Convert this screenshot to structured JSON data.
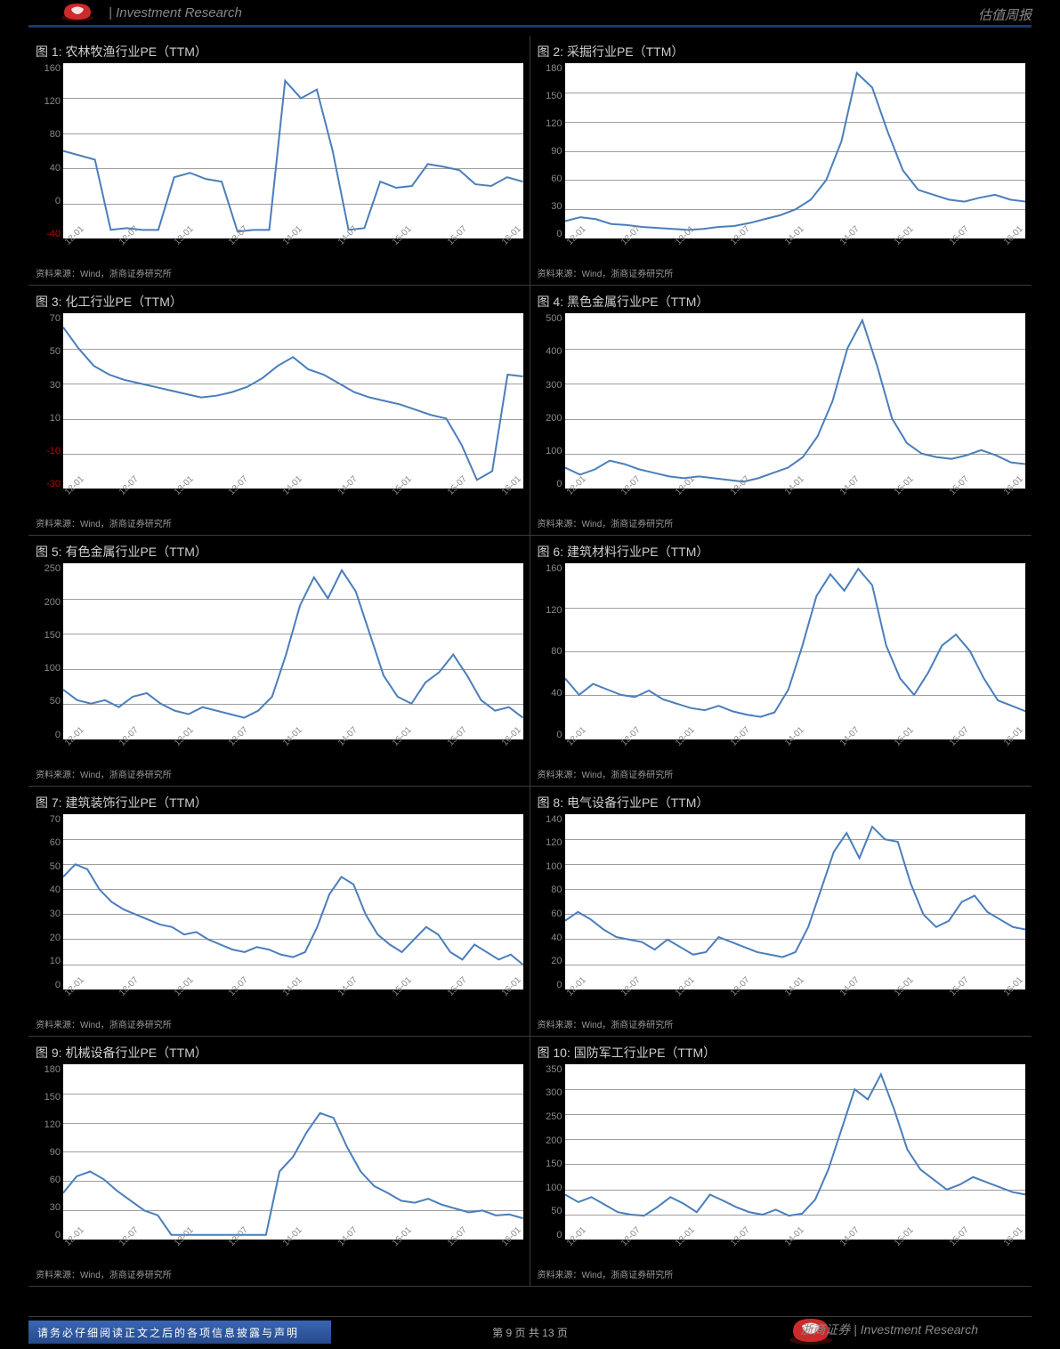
{
  "header": {
    "left": "| Investment Research",
    "right": "估值周报"
  },
  "footer": {
    "bar": "请务必仔细阅读正文之后的各项信息披露与声明",
    "page": "第 9 页 共 13 页",
    "brand": "浙商证券 | Investment Research",
    "logo_red": "#cc2b2b",
    "logo_shadow": "#5a0e0e"
  },
  "brand": {
    "red": "#cc2b2b",
    "shadow": "#5a0e0e",
    "header_rule": "#1f3864"
  },
  "xticks": [
    "12-01",
    "12-07",
    "13-01",
    "13-07",
    "14-01",
    "14-07",
    "15-01",
    "15-07",
    "16-01"
  ],
  "line_color": "#4a7ebb",
  "grid_color": "#9e9e9e",
  "neg_color": "#c00000",
  "src_text": "资料来源：Wind，浙商证券研究所",
  "charts": [
    {
      "title": "图 1: 农林牧渔行业PE（TTM）",
      "ymin": -40,
      "ymax": 160,
      "yticks": [
        160,
        120,
        80,
        40,
        0,
        -40
      ],
      "neg_ticks": [
        -40
      ],
      "data": [
        60,
        55,
        50,
        -30,
        -28,
        -30,
        -30,
        30,
        35,
        28,
        25,
        -32,
        -30,
        -30,
        140,
        120,
        130,
        60,
        -30,
        -28,
        25,
        18,
        20,
        45,
        42,
        38,
        22,
        20,
        30,
        25
      ]
    },
    {
      "title": "图 2: 采掘行业PE（TTM）",
      "ymin": 0,
      "ymax": 180,
      "yticks": [
        180,
        150,
        120,
        90,
        60,
        30,
        0
      ],
      "data": [
        18,
        22,
        20,
        15,
        14,
        12,
        11,
        10,
        9,
        10,
        12,
        13,
        16,
        20,
        24,
        30,
        40,
        60,
        100,
        170,
        155,
        110,
        70,
        50,
        45,
        40,
        38,
        42,
        45,
        40,
        38
      ]
    },
    {
      "title": "图 3: 化工行业PE（TTM）",
      "ymin": -30,
      "ymax": 70,
      "yticks": [
        70,
        50,
        30,
        10,
        -10,
        -30
      ],
      "neg_ticks": [
        -10,
        -30
      ],
      "data": [
        62,
        50,
        40,
        35,
        32,
        30,
        28,
        26,
        24,
        22,
        23,
        25,
        28,
        33,
        40,
        45,
        38,
        35,
        30,
        25,
        22,
        20,
        18,
        15,
        12,
        10,
        -5,
        -25,
        -20,
        35,
        34
      ]
    },
    {
      "title": "图 4: 黑色金属行业PE（TTM）",
      "ymin": 0,
      "ymax": 500,
      "yticks": [
        500,
        400,
        300,
        200,
        100,
        0
      ],
      "data": [
        60,
        40,
        55,
        80,
        70,
        55,
        45,
        35,
        30,
        35,
        30,
        25,
        20,
        30,
        45,
        60,
        90,
        150,
        250,
        400,
        480,
        350,
        200,
        130,
        100,
        90,
        85,
        95,
        110,
        95,
        75,
        70
      ]
    },
    {
      "title": "图 5: 有色金属行业PE（TTM）",
      "ymin": 0,
      "ymax": 250,
      "yticks": [
        250,
        200,
        150,
        100,
        50,
        0
      ],
      "data": [
        70,
        55,
        50,
        55,
        45,
        60,
        65,
        50,
        40,
        35,
        45,
        40,
        35,
        30,
        40,
        60,
        120,
        190,
        230,
        200,
        240,
        210,
        150,
        90,
        60,
        50,
        80,
        95,
        120,
        90,
        55,
        40,
        45,
        30
      ]
    },
    {
      "title": "图 6: 建筑材料行业PE（TTM）",
      "ymin": 0,
      "ymax": 160,
      "yticks": [
        160,
        120,
        80,
        40,
        0
      ],
      "data": [
        55,
        40,
        50,
        45,
        40,
        38,
        44,
        36,
        32,
        28,
        26,
        30,
        25,
        22,
        20,
        24,
        45,
        85,
        130,
        150,
        135,
        155,
        140,
        85,
        55,
        40,
        60,
        85,
        95,
        80,
        55,
        35,
        30,
        25
      ]
    },
    {
      "title": "图 7: 建筑装饰行业PE（TTM）",
      "ymin": 0,
      "ymax": 70,
      "yticks": [
        70,
        60,
        50,
        40,
        30,
        20,
        10,
        0
      ],
      "data": [
        45,
        50,
        48,
        40,
        35,
        32,
        30,
        28,
        26,
        25,
        22,
        23,
        20,
        18,
        16,
        15,
        17,
        16,
        14,
        13,
        15,
        25,
        38,
        45,
        42,
        30,
        22,
        18,
        15,
        20,
        25,
        22,
        15,
        12,
        18,
        15,
        12,
        14,
        10
      ]
    },
    {
      "title": "图 8: 电气设备行业PE（TTM）",
      "ymin": 0,
      "ymax": 140,
      "yticks": [
        140,
        120,
        100,
        80,
        60,
        40,
        20,
        0
      ],
      "data": [
        55,
        62,
        56,
        48,
        42,
        40,
        38,
        32,
        40,
        34,
        28,
        30,
        42,
        38,
        34,
        30,
        28,
        26,
        30,
        50,
        80,
        110,
        125,
        105,
        130,
        120,
        118,
        85,
        60,
        50,
        55,
        70,
        75,
        62,
        56,
        50,
        48
      ]
    },
    {
      "title": "图 9: 机械设备行业PE（TTM）",
      "ymin": 0,
      "ymax": 180,
      "yticks": [
        180,
        150,
        120,
        90,
        60,
        30,
        0
      ],
      "data": [
        48,
        65,
        70,
        62,
        50,
        40,
        30,
        25,
        5,
        5,
        5,
        5,
        5,
        5,
        5,
        5,
        70,
        85,
        110,
        130,
        125,
        95,
        70,
        55,
        48,
        40,
        38,
        42,
        36,
        32,
        28,
        30,
        25,
        26,
        22
      ]
    },
    {
      "title": "图 10: 国防军工行业PE（TTM）",
      "ymin": 0,
      "ymax": 350,
      "yticks": [
        350,
        300,
        250,
        200,
        150,
        100,
        50,
        0
      ],
      "data": [
        90,
        75,
        85,
        70,
        55,
        50,
        48,
        65,
        85,
        72,
        55,
        90,
        78,
        65,
        55,
        50,
        60,
        48,
        52,
        80,
        140,
        220,
        300,
        280,
        330,
        260,
        180,
        140,
        120,
        100,
        110,
        125,
        115,
        105,
        95,
        90
      ]
    }
  ]
}
